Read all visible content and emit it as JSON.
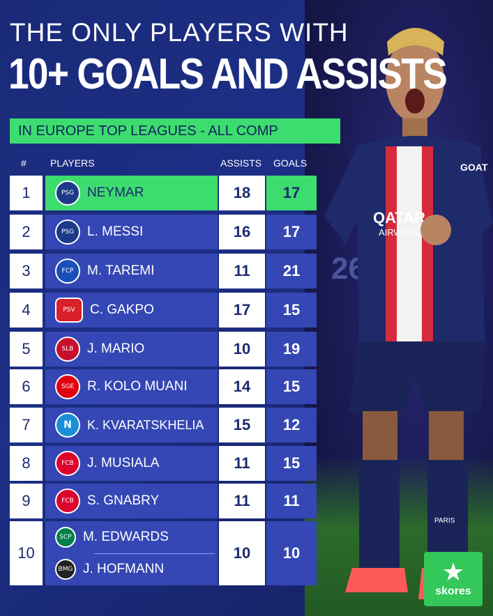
{
  "header": {
    "line1": "THE ONLY PLAYERS WITH",
    "line2": "10+ GOALS AND ASSISTS",
    "subtitle": "IN EUROPE TOP LEAGUES - ALL COMP"
  },
  "columns": {
    "rank": "#",
    "players": "PLAYERS",
    "assists": "ASSISTS",
    "goals": "GOALS"
  },
  "rows": [
    {
      "rank": "1",
      "players": [
        "NEYMAR"
      ],
      "assists": "18",
      "goals": "17"
    },
    {
      "rank": "2",
      "players": [
        "L. MESSI"
      ],
      "assists": "16",
      "goals": "17"
    },
    {
      "rank": "3",
      "players": [
        "M. TAREMI"
      ],
      "assists": "11",
      "goals": "21"
    },
    {
      "rank": "4",
      "players": [
        "C. GAKPO"
      ],
      "assists": "17",
      "goals": "15"
    },
    {
      "rank": "5",
      "players": [
        "J. MARIO"
      ],
      "assists": "10",
      "goals": "19"
    },
    {
      "rank": "6",
      "players": [
        "R. KOLO MUANI"
      ],
      "assists": "14",
      "goals": "15"
    },
    {
      "rank": "7",
      "players": [
        "K. KVARATSKHELIA"
      ],
      "assists": "15",
      "goals": "12"
    },
    {
      "rank": "8",
      "players": [
        "J. MUSIALA"
      ],
      "assists": "11",
      "goals": "15"
    },
    {
      "rank": "9",
      "players": [
        "S. GNABRY"
      ],
      "assists": "11",
      "goals": "11"
    },
    {
      "rank": "10",
      "players": [
        "M. EDWARDS",
        "J. HOFMANN"
      ],
      "assists": "10",
      "goals": "10"
    }
  ],
  "badges": {
    "r1": {
      "icon": "psg-crest-icon",
      "color": "#1d3a8a"
    },
    "r2": {
      "icon": "psg-crest-icon",
      "color": "#1d3a8a"
    },
    "r3": {
      "icon": "porto-crest-icon",
      "color": "#1b4fb8"
    },
    "r4": {
      "icon": "psv-liverpool-crest-icon",
      "color": "#d8202a"
    },
    "r5": {
      "icon": "benfica-crest-icon",
      "color": "#c8102e"
    },
    "r6": {
      "icon": "eintracht-frankfurt-crest-icon",
      "color": "#e1000f"
    },
    "r7": {
      "icon": "napoli-crest-icon",
      "color": "#1a8fd8"
    },
    "r8": {
      "icon": "bayern-crest-icon",
      "color": "#dc052d"
    },
    "r9": {
      "icon": "bayern-crest-icon",
      "color": "#dc052d"
    },
    "r10a": {
      "icon": "sporting-crest-icon",
      "color": "#00804a"
    },
    "r10b": {
      "icon": "gladbach-crest-icon",
      "color": "#222222"
    }
  },
  "brand": {
    "name": "skores",
    "icon": "star-icon",
    "color": "#34c759"
  },
  "colors": {
    "accent_green": "#3ddc6f",
    "row_blue": "#3447b4",
    "navy": "#1b2a6f"
  },
  "photo": {
    "shirt_text": [
      "QATAR",
      "AIRWAYS"
    ],
    "sleeve_text": "GOAT",
    "sock_text": "PARIS",
    "number": "26"
  }
}
